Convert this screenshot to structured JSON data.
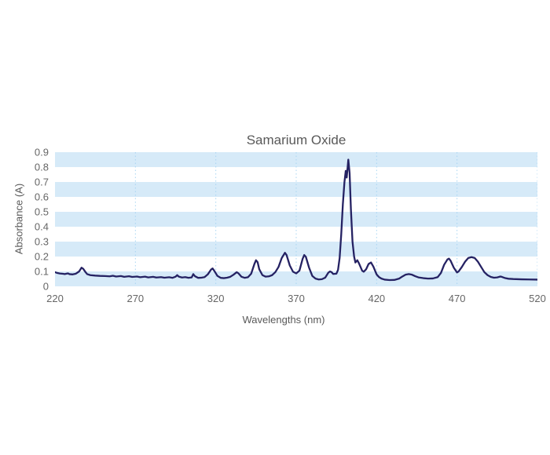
{
  "chart_data": {
    "type": "line",
    "title": "Samarium Oxide",
    "xlabel": "Wavelengths (nm)",
    "ylabel": "Absorbance (A)",
    "xlim": [
      220,
      520
    ],
    "ylim": [
      0,
      0.9
    ],
    "x_ticks": [
      220,
      270,
      320,
      370,
      420,
      470,
      520
    ],
    "y_ticks": [
      0,
      0.1,
      0.2,
      0.3,
      0.4,
      0.5,
      0.6,
      0.7,
      0.8,
      0.9
    ],
    "x_gridlines": [
      270,
      320,
      370,
      420,
      470,
      520
    ],
    "grid": "horizontal striped blue bands each 0.1 A; vertical dotted gridlines at 50 nm ticks",
    "legend": "none",
    "colors": {
      "line": "#252263",
      "band": "#d6eaf8",
      "gridline": "#a9d5f2",
      "title_text": "#595959",
      "tick_text": "#666666"
    },
    "series": [
      {
        "name": "Samarium Oxide absorbance spectrum",
        "points": [
          [
            220,
            0.095
          ],
          [
            221,
            0.091
          ],
          [
            223,
            0.086
          ],
          [
            225,
            0.084
          ],
          [
            226,
            0.082
          ],
          [
            228,
            0.087
          ],
          [
            229,
            0.082
          ],
          [
            231,
            0.08
          ],
          [
            233,
            0.085
          ],
          [
            235,
            0.1
          ],
          [
            236.5,
            0.125
          ],
          [
            237.5,
            0.118
          ],
          [
            239,
            0.095
          ],
          [
            240,
            0.082
          ],
          [
            242,
            0.075
          ],
          [
            245,
            0.072
          ],
          [
            248,
            0.07
          ],
          [
            251,
            0.069
          ],
          [
            254,
            0.067
          ],
          [
            256,
            0.071
          ],
          [
            258,
            0.066
          ],
          [
            261,
            0.069
          ],
          [
            263,
            0.064
          ],
          [
            266,
            0.068
          ],
          [
            268,
            0.063
          ],
          [
            271,
            0.066
          ],
          [
            273,
            0.061
          ],
          [
            276,
            0.065
          ],
          [
            278,
            0.06
          ],
          [
            281,
            0.064
          ],
          [
            283,
            0.059
          ],
          [
            286,
            0.062
          ],
          [
            288,
            0.058
          ],
          [
            291,
            0.061
          ],
          [
            293,
            0.057
          ],
          [
            295,
            0.065
          ],
          [
            296,
            0.075
          ],
          [
            297,
            0.065
          ],
          [
            299,
            0.059
          ],
          [
            301,
            0.062
          ],
          [
            303,
            0.057
          ],
          [
            305,
            0.06
          ],
          [
            306,
            0.082
          ],
          [
            307,
            0.068
          ],
          [
            309,
            0.057
          ],
          [
            311,
            0.058
          ],
          [
            313,
            0.062
          ],
          [
            315,
            0.08
          ],
          [
            317,
            0.112
          ],
          [
            318,
            0.12
          ],
          [
            319,
            0.105
          ],
          [
            321,
            0.07
          ],
          [
            323,
            0.057
          ],
          [
            325,
            0.055
          ],
          [
            327,
            0.058
          ],
          [
            329,
            0.064
          ],
          [
            331,
            0.078
          ],
          [
            333,
            0.095
          ],
          [
            334,
            0.088
          ],
          [
            336,
            0.064
          ],
          [
            338,
            0.057
          ],
          [
            340,
            0.061
          ],
          [
            342,
            0.085
          ],
          [
            344,
            0.15
          ],
          [
            345,
            0.175
          ],
          [
            346,
            0.162
          ],
          [
            347,
            0.115
          ],
          [
            349,
            0.075
          ],
          [
            351,
            0.065
          ],
          [
            353,
            0.067
          ],
          [
            355,
            0.075
          ],
          [
            357,
            0.095
          ],
          [
            359,
            0.13
          ],
          [
            361,
            0.19
          ],
          [
            363,
            0.225
          ],
          [
            364,
            0.21
          ],
          [
            366,
            0.14
          ],
          [
            368,
            0.098
          ],
          [
            370,
            0.087
          ],
          [
            372,
            0.105
          ],
          [
            374,
            0.185
          ],
          [
            375,
            0.21
          ],
          [
            376,
            0.198
          ],
          [
            378,
            0.125
          ],
          [
            380,
            0.07
          ],
          [
            382,
            0.052
          ],
          [
            384,
            0.046
          ],
          [
            386,
            0.048
          ],
          [
            388,
            0.058
          ],
          [
            390,
            0.092
          ],
          [
            391,
            0.1
          ],
          [
            392,
            0.095
          ],
          [
            393,
            0.083
          ],
          [
            395,
            0.085
          ],
          [
            396,
            0.11
          ],
          [
            397,
            0.19
          ],
          [
            398,
            0.35
          ],
          [
            399,
            0.55
          ],
          [
            400,
            0.7
          ],
          [
            400.8,
            0.775
          ],
          [
            401.4,
            0.73
          ],
          [
            402.4,
            0.85
          ],
          [
            403.2,
            0.76
          ],
          [
            404,
            0.52
          ],
          [
            405,
            0.3
          ],
          [
            406,
            0.2
          ],
          [
            406.8,
            0.16
          ],
          [
            408,
            0.175
          ],
          [
            409,
            0.155
          ],
          [
            411,
            0.105
          ],
          [
            412,
            0.098
          ],
          [
            413.5,
            0.115
          ],
          [
            415,
            0.15
          ],
          [
            416.5,
            0.16
          ],
          [
            418,
            0.132
          ],
          [
            420,
            0.08
          ],
          [
            421.5,
            0.062
          ],
          [
            423,
            0.052
          ],
          [
            425,
            0.045
          ],
          [
            428,
            0.042
          ],
          [
            431,
            0.043
          ],
          [
            434,
            0.052
          ],
          [
            436,
            0.066
          ],
          [
            438,
            0.078
          ],
          [
            440,
            0.082
          ],
          [
            442,
            0.078
          ],
          [
            444,
            0.068
          ],
          [
            446,
            0.06
          ],
          [
            449,
            0.055
          ],
          [
            452,
            0.052
          ],
          [
            455,
            0.053
          ],
          [
            458,
            0.062
          ],
          [
            460,
            0.09
          ],
          [
            462,
            0.145
          ],
          [
            464,
            0.18
          ],
          [
            465,
            0.186
          ],
          [
            466,
            0.172
          ],
          [
            468,
            0.125
          ],
          [
            470,
            0.093
          ],
          [
            471,
            0.1
          ],
          [
            473,
            0.13
          ],
          [
            475,
            0.165
          ],
          [
            477,
            0.19
          ],
          [
            479,
            0.196
          ],
          [
            481,
            0.19
          ],
          [
            483,
            0.165
          ],
          [
            485,
            0.13
          ],
          [
            487,
            0.095
          ],
          [
            489,
            0.075
          ],
          [
            491,
            0.063
          ],
          [
            493,
            0.058
          ],
          [
            495,
            0.06
          ],
          [
            497,
            0.066
          ],
          [
            498,
            0.063
          ],
          [
            500,
            0.055
          ],
          [
            502,
            0.051
          ],
          [
            505,
            0.049
          ],
          [
            510,
            0.047
          ],
          [
            515,
            0.046
          ],
          [
            520,
            0.045
          ]
        ]
      }
    ]
  }
}
